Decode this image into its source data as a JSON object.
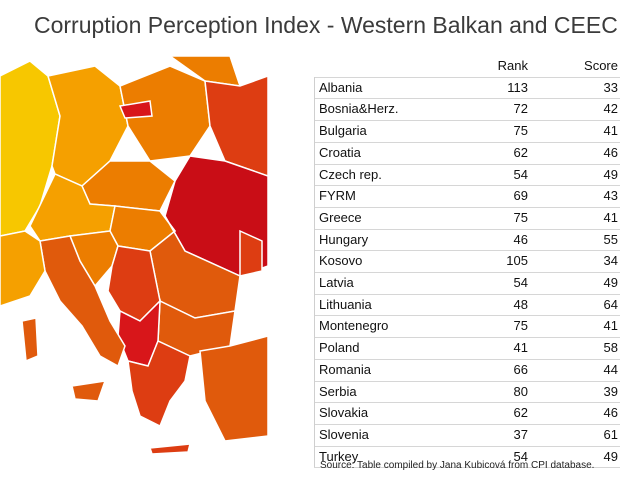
{
  "title": "Corruption Perception Index - Western Balkan and CEEC",
  "table": {
    "columns": [
      "",
      "Rank",
      "Score"
    ],
    "rows": [
      {
        "country": "Albania",
        "rank": "113",
        "score": "33"
      },
      {
        "country": "Bosnia&Herz.",
        "rank": "72",
        "score": "42"
      },
      {
        "country": "Bulgaria",
        "rank": "75",
        "score": "41"
      },
      {
        "country": "Croatia",
        "rank": "62",
        "score": "46"
      },
      {
        "country": "Czech rep.",
        "rank": "54",
        "score": "49"
      },
      {
        "country": "FYRM",
        "rank": "69",
        "score": "43"
      },
      {
        "country": "Greece",
        "rank": "75",
        "score": "41"
      },
      {
        "country": "Hungary",
        "rank": "46",
        "score": "55"
      },
      {
        "country": "Kosovo",
        "rank": "105",
        "score": "34"
      },
      {
        "country": "Latvia",
        "rank": "54",
        "score": "49"
      },
      {
        "country": "Lithuania",
        "rank": "48",
        "score": "64"
      },
      {
        "country": "Montenegro",
        "rank": "75",
        "score": "41"
      },
      {
        "country": "Poland",
        "rank": "41",
        "score": "58"
      },
      {
        "country": "Romania",
        "rank": "66",
        "score": "44"
      },
      {
        "country": "Serbia",
        "rank": "80",
        "score": "39"
      },
      {
        "country": "Slovakia",
        "rank": "62",
        "score": "46"
      },
      {
        "country": "Slovenia",
        "rank": "37",
        "score": "61"
      },
      {
        "country": "Turkey",
        "rank": "54",
        "score": "49"
      }
    ]
  },
  "source": "Source: Table compiled by Jana Kubicová from CPI database.",
  "map_colors": {
    "sea": "#ffffff",
    "yellow": "#f7c700",
    "orange_light": "#f5a000",
    "orange": "#ec7d00",
    "orange_dark": "#e05a0c",
    "red_orange": "#dd3d12",
    "red": "#d8161a",
    "red_dark": "#c90d16",
    "border": "#ffffff"
  }
}
